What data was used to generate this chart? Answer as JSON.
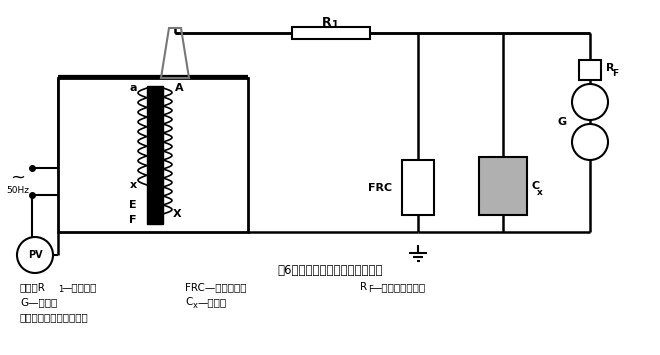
{
  "bg_color": "#ffffff",
  "title": "图6：被试品工频耐压试验接线图",
  "line1": "图中：R₁—限流电阻          FRC—阻容分压器       R₆—球间隙保护电阻",
  "line2": "        G—球间隙                C₀—被试品",
  "line3": "注：高压尾必须可靠接地",
  "gray": "#b0b0b0"
}
